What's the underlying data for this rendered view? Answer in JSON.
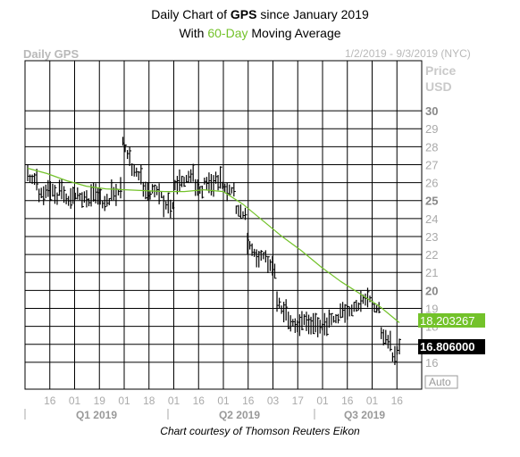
{
  "header": {
    "title_prefix": "Daily Chart of ",
    "title_ticker": "GPS",
    "title_suffix": " since January 2019",
    "subtitle_prefix": "With ",
    "subtitle_accent": "60-Day",
    "subtitle_suffix": " Moving Average",
    "chart_label": "Daily GPS",
    "date_range": "1/2/2019 - 9/3/2019 (NYC)"
  },
  "footer": {
    "credit": "Chart courtesy of Thomson Reuters Eikon"
  },
  "colors": {
    "ma_line": "#73c22a",
    "ma_label_bg": "#73c22a",
    "price_label_bg": "#000000",
    "grid": "#000000",
    "bars": "#000000"
  },
  "chart_data": {
    "type": "bar",
    "ylim": [
      14.5,
      30.5
    ],
    "y_ticks": [
      16,
      17,
      18,
      19,
      20,
      21,
      22,
      23,
      24,
      25,
      26,
      27,
      28,
      29,
      30
    ],
    "y_tick_labels_bold": [
      20,
      25,
      30
    ],
    "y_axis_title": [
      "Price",
      "USD"
    ],
    "auto_label": "Auto",
    "x_tick_labels": [
      "16",
      "01",
      "19",
      "01",
      "18",
      "01",
      "16",
      "01",
      "16",
      "03",
      "17",
      "01",
      "16",
      "01",
      "16"
    ],
    "x_quarters": [
      "Q1 2019",
      "Q2 2019",
      "Q3 2019"
    ],
    "last_price_label": "16.806000",
    "ma_label": "18.203267",
    "ma_value": 18.2,
    "last_price": 16.8,
    "price_segments": [
      [
        26.3,
        26.0
      ],
      [
        25.2,
        25.5
      ],
      [
        25.8,
        24.8
      ],
      [
        25.6,
        24.9
      ],
      [
        25.0,
        25.3
      ],
      [
        25.2,
        24.8
      ],
      [
        25.4,
        25.1
      ],
      [
        24.7,
        25.0
      ],
      [
        25.3,
        25.5
      ],
      [
        28.5,
        27.0
      ],
      [
        26.7,
        26.2
      ],
      [
        25.7,
        25.2
      ],
      [
        25.6,
        25.3
      ],
      [
        24.7,
        24.6
      ],
      [
        25.6,
        26.2
      ],
      [
        26.0,
        26.5
      ],
      [
        25.7,
        25.5
      ],
      [
        26.1,
        25.5
      ],
      [
        26.3,
        25.6
      ],
      [
        25.5,
        25.5
      ],
      [
        24.4,
        24.2
      ],
      [
        22.8,
        21.8
      ],
      [
        21.8,
        21.9
      ],
      [
        21.6,
        21.0
      ],
      [
        19.3,
        18.5
      ],
      [
        18.3,
        18.0
      ],
      [
        18.0,
        18.4
      ],
      [
        18.2,
        17.9
      ],
      [
        17.9,
        17.8
      ],
      [
        18.2,
        18.4
      ],
      [
        18.7,
        18.8
      ],
      [
        18.9,
        19.1
      ],
      [
        19.3,
        19.5
      ],
      [
        19.1,
        18.8
      ],
      [
        17.6,
        16.8
      ],
      [
        16.2,
        16.8
      ]
    ],
    "ma_series": [
      26.8,
      26.5,
      26.1,
      25.8,
      25.65,
      25.6,
      25.55,
      25.5,
      25.5,
      25.6,
      25.5,
      24.8,
      23.9,
      23.0,
      22.2,
      21.3,
      20.5,
      19.8,
      19.1,
      18.2
    ]
  }
}
